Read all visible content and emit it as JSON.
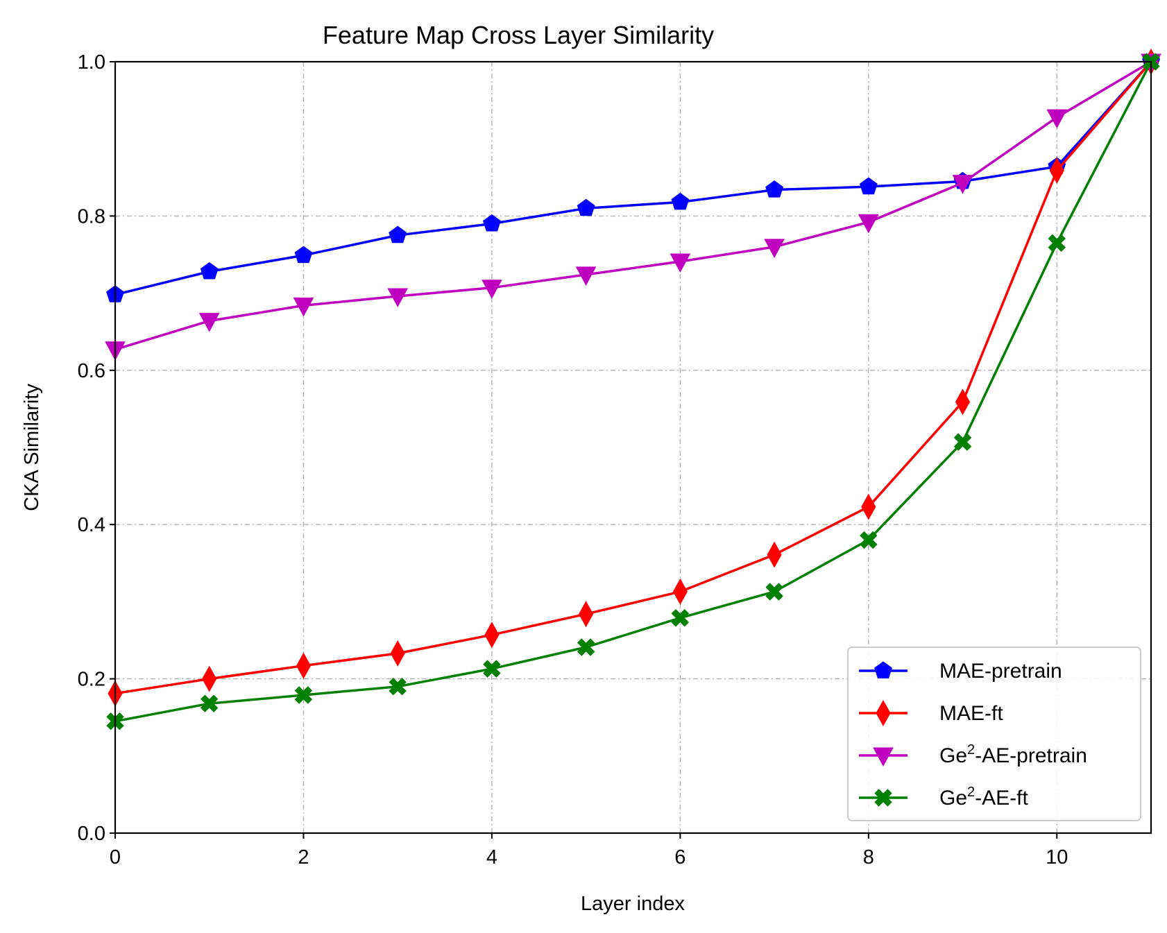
{
  "chart_data": {
    "type": "line",
    "title": "Feature Map Cross Layer Similarity",
    "xlabel": "Layer index",
    "ylabel": "CKA Similarity",
    "xlim": [
      0,
      11
    ],
    "ylim": [
      0.0,
      1.0
    ],
    "x": [
      0,
      1,
      2,
      3,
      4,
      5,
      6,
      7,
      8,
      9,
      10,
      11
    ],
    "xticks": [
      0,
      2,
      4,
      6,
      8,
      10
    ],
    "xtick_labels": [
      "0",
      "2",
      "4",
      "6",
      "8",
      "10"
    ],
    "yticks": [
      0.0,
      0.2,
      0.4,
      0.6,
      0.8,
      1.0
    ],
    "ytick_labels": [
      "0.0",
      "0.2",
      "0.4",
      "0.6",
      "0.8",
      "1.0"
    ],
    "grid": true,
    "legend_position": "lower-right",
    "series": [
      {
        "name": "MAE-pretrain",
        "label_base": "MAE-pretrain",
        "label_sup": "",
        "label_rest": "",
        "color": "#0000ff",
        "marker": "pentagon",
        "values": [
          0.698,
          0.728,
          0.749,
          0.775,
          0.79,
          0.81,
          0.818,
          0.834,
          0.838,
          0.845,
          0.864,
          1.0
        ]
      },
      {
        "name": "MAE-ft",
        "label_base": "MAE-ft",
        "label_sup": "",
        "label_rest": "",
        "color": "#ff0000",
        "marker": "thin-diamond",
        "values": [
          0.181,
          0.2,
          0.217,
          0.233,
          0.257,
          0.284,
          0.313,
          0.361,
          0.423,
          0.559,
          0.859,
          1.0
        ]
      },
      {
        "name": "Ge2-AE-pretrain",
        "label_base": "Ge",
        "label_sup": "2",
        "label_rest": "-AE-pretrain",
        "color": "#bf00bf",
        "marker": "triangle-down",
        "values": [
          0.627,
          0.664,
          0.684,
          0.696,
          0.707,
          0.724,
          0.741,
          0.76,
          0.792,
          0.843,
          0.928,
          1.0
        ]
      },
      {
        "name": "Ge2-AE-ft",
        "label_base": "Ge",
        "label_sup": "2",
        "label_rest": "-AE-ft",
        "color": "#008000",
        "marker": "x-filled",
        "values": [
          0.145,
          0.168,
          0.179,
          0.19,
          0.213,
          0.241,
          0.279,
          0.313,
          0.38,
          0.507,
          0.765,
          1.0
        ]
      }
    ]
  }
}
